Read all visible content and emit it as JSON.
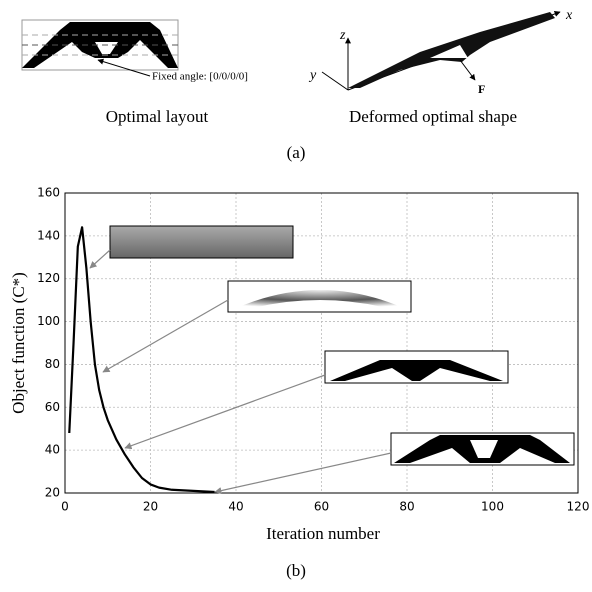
{
  "panel_a": {
    "annotation": "Fixed angle: [0/0/0/0]",
    "axis_z": "z",
    "axis_x": "x",
    "axis_y": "y",
    "force": "F",
    "left_caption": "Optimal layout",
    "right_caption": "Deformed optimal shape",
    "label": "(a)"
  },
  "chart_data": {
    "type": "line",
    "xlabel": "Iteration number",
    "ylabel": "Object function (C*)",
    "label": "(b)",
    "x": [
      1,
      2,
      3,
      4,
      5,
      6,
      7,
      8,
      9,
      10,
      12,
      14,
      16,
      18,
      20,
      22,
      25,
      30,
      35
    ],
    "series": [
      {
        "color": "#000000",
        "values": [
          48,
          90,
          135,
          144,
          125,
          100,
          80,
          68,
          60,
          54,
          45,
          38,
          32,
          27,
          24,
          22.5,
          21.5,
          21,
          20.5
        ]
      }
    ],
    "xlim": [
      0,
      120
    ],
    "xticks": [
      0,
      20,
      40,
      60,
      80,
      100,
      120
    ],
    "ylim": [
      20,
      160
    ],
    "yticks": [
      20,
      40,
      60,
      80,
      100,
      120,
      140,
      160
    ],
    "grid": true
  }
}
